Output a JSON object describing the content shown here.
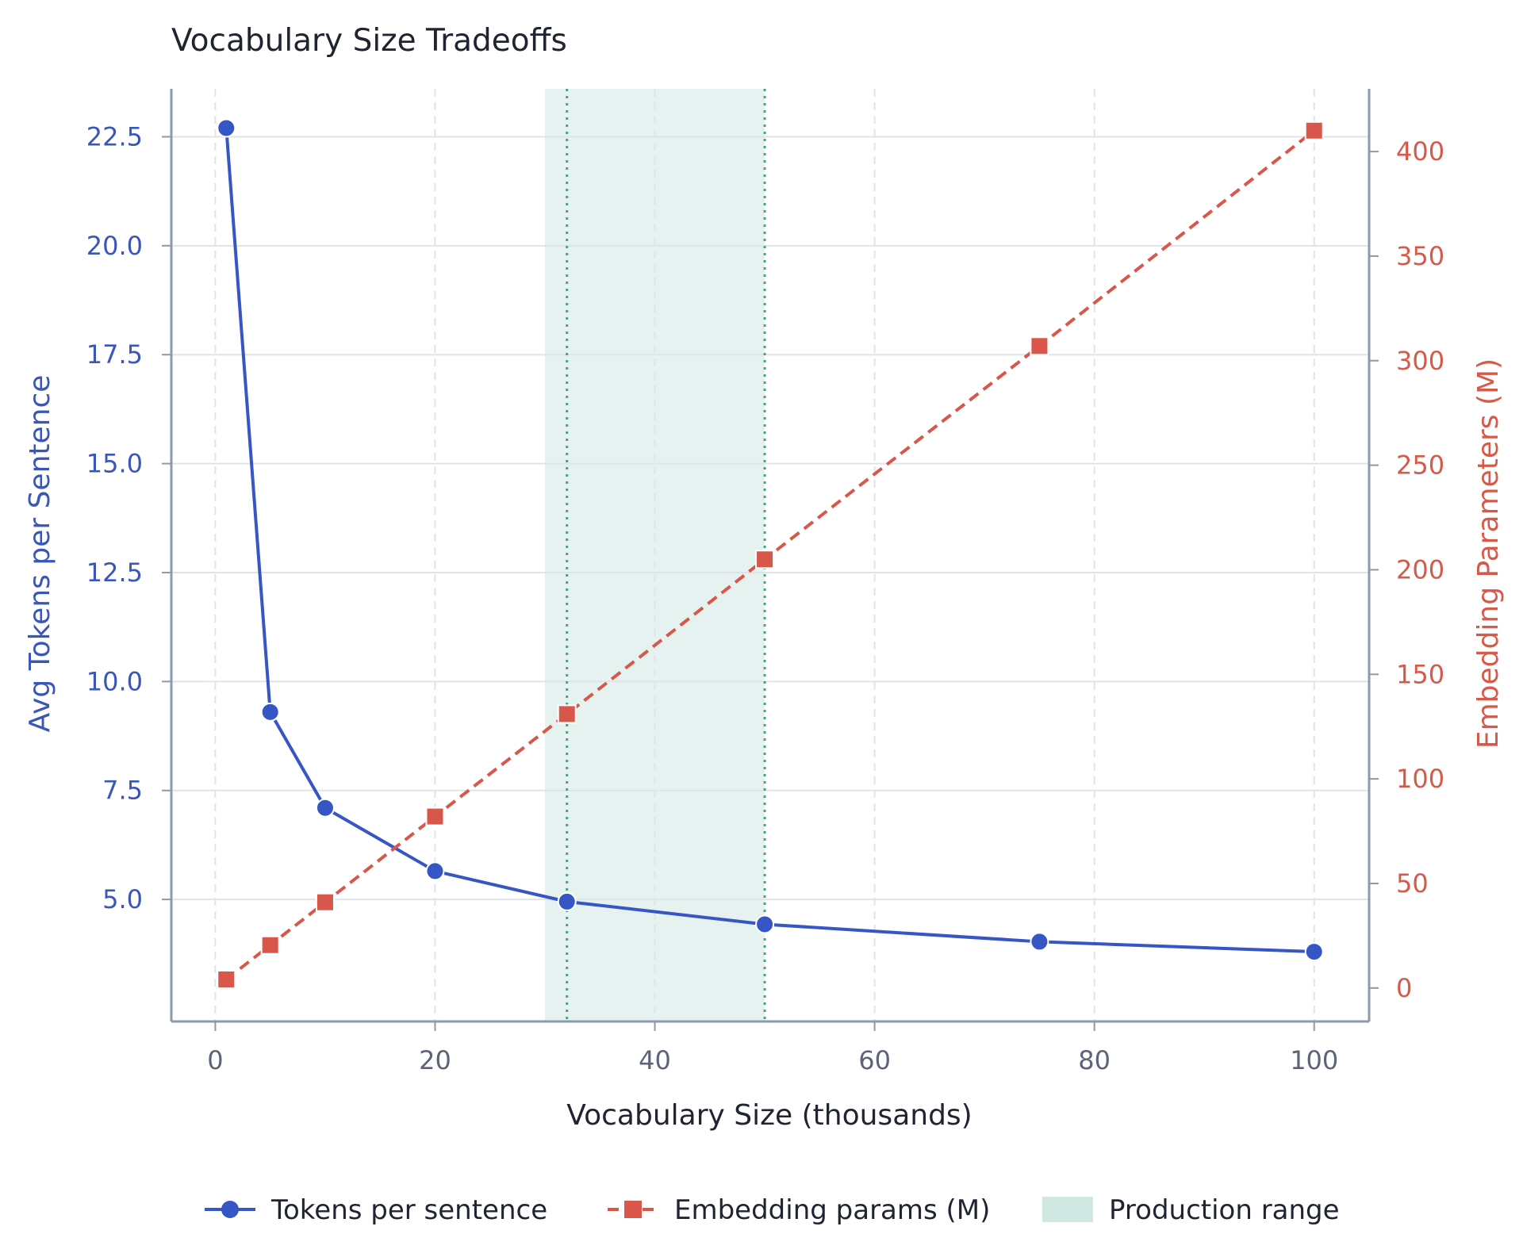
{
  "chart_data": {
    "type": "line",
    "title": "Vocabulary Size Tradeoffs",
    "xlabel": "Vocabulary Size (thousands)",
    "ylabel_left": "Avg Tokens per Sentence",
    "ylabel_right": "Embedding Parameters (M)",
    "xlim": [
      -4,
      105
    ],
    "ylim_left": [
      2.2,
      23.6
    ],
    "ylim_right": [
      -16,
      430
    ],
    "x_ticks": [
      0,
      20,
      40,
      60,
      80,
      100
    ],
    "x_tick_labels": [
      "0",
      "20",
      "40",
      "60",
      "80",
      "100"
    ],
    "y_left_ticks": [
      5.0,
      7.5,
      10.0,
      12.5,
      15.0,
      17.5,
      20.0,
      22.5
    ],
    "y_left_tick_labels": [
      "5.0",
      "7.5",
      "10.0",
      "12.5",
      "15.0",
      "17.5",
      "20.0",
      "22.5"
    ],
    "y_right_ticks": [
      0,
      50,
      100,
      150,
      200,
      250,
      300,
      350,
      400
    ],
    "y_right_tick_labels": [
      "0",
      "50",
      "100",
      "150",
      "200",
      "250",
      "300",
      "350",
      "400"
    ],
    "grid": true,
    "legend_position": "bottom",
    "series": [
      {
        "name": "Tokens per sentence",
        "axis": "left",
        "color": "#3556c4",
        "marker": "circle",
        "line_style": "solid",
        "x": [
          1,
          5,
          10,
          20,
          32,
          50,
          75,
          100
        ],
        "y": [
          22.7,
          9.3,
          7.1,
          5.65,
          4.95,
          4.43,
          4.03,
          3.8
        ]
      },
      {
        "name": "Embedding params (M)",
        "axis": "right",
        "color": "#d9574a",
        "marker": "square",
        "line_style": "dashed",
        "x": [
          1,
          5,
          10,
          20,
          32,
          50,
          75,
          100
        ],
        "y": [
          4.1,
          20.5,
          41,
          82,
          131,
          205,
          307,
          410
        ]
      }
    ],
    "shaded_region": {
      "label": "Production range",
      "x_range": [
        30,
        50
      ],
      "color": "#cfe8e2"
    },
    "vertical_lines": [
      {
        "x": 32,
        "color": "#3aaa86",
        "style": "dotted"
      },
      {
        "x": 50,
        "color": "#3aaa86",
        "style": "dotted"
      }
    ]
  }
}
